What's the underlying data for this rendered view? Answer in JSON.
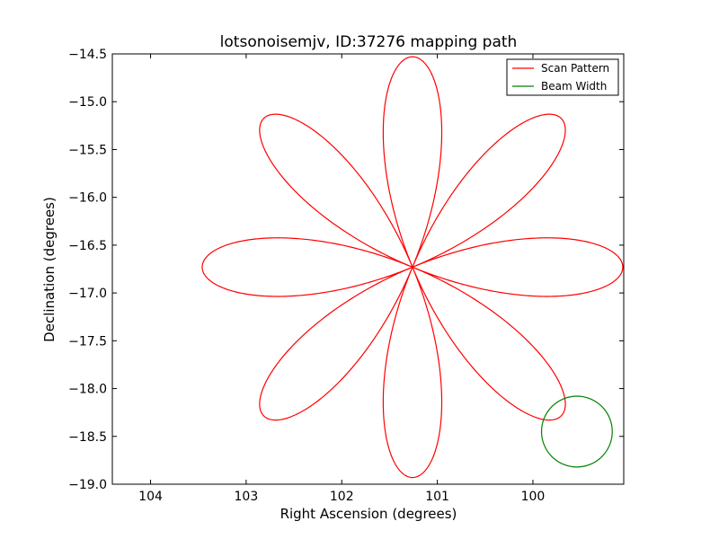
{
  "chart_data": {
    "type": "line",
    "title": "lotsonoisemjv, ID:37276 mapping path",
    "xlabel": "Right Ascension (degrees)",
    "ylabel": "Declination (degrees)",
    "xlim": [
      104.4,
      99.05
    ],
    "ylim": [
      -19.0,
      -14.5
    ],
    "x_ticks": [
      104,
      103,
      102,
      101,
      100
    ],
    "x_tick_labels": [
      "104",
      "103",
      "102",
      "101",
      "100"
    ],
    "y_ticks": [
      -14.5,
      -15.0,
      -15.5,
      -16.0,
      -16.5,
      -17.0,
      -17.5,
      -18.0,
      -18.5,
      -19.0
    ],
    "y_tick_labels": [
      "−14.5",
      "−15.0",
      "−15.5",
      "−16.0",
      "−16.5",
      "−17.0",
      "−17.5",
      "−18.0",
      "−18.5",
      "−19.0"
    ],
    "grid": false,
    "legend": {
      "position": "top-right",
      "entries": [
        "Scan Pattern",
        "Beam Width"
      ]
    },
    "series": [
      {
        "name": "Scan Pattern",
        "color": "#ff0000",
        "pattern": "rose",
        "center": [
          101.26,
          -16.73
        ],
        "radius": 2.2,
        "petals": 8,
        "petal_axis_angles_deg": [
          0,
          45,
          90,
          135,
          180,
          225,
          270,
          315
        ]
      },
      {
        "name": "Beam Width",
        "color": "#008000",
        "shape": "circle",
        "center": [
          99.54,
          -18.45
        ],
        "diameter": 0.74
      }
    ]
  }
}
